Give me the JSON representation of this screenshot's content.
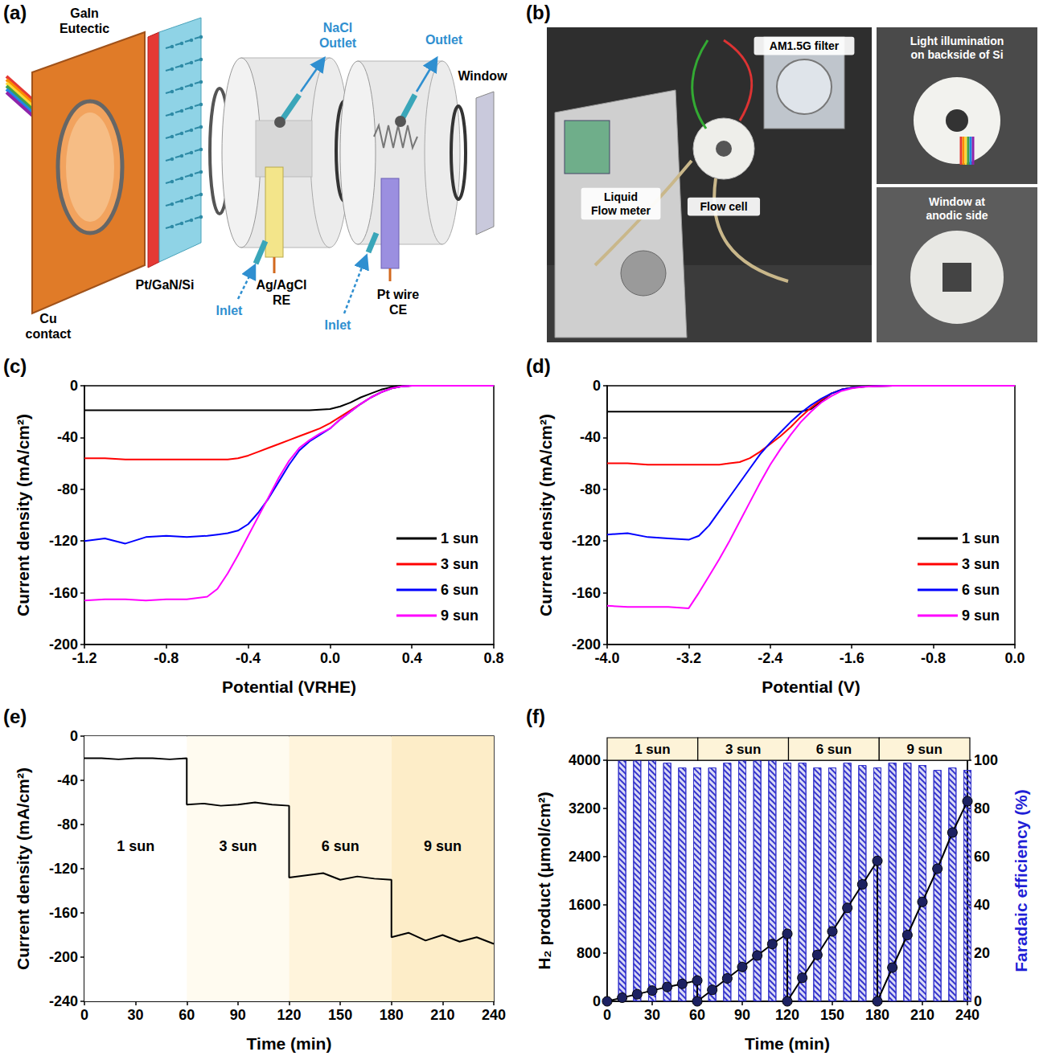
{
  "diagram": {
    "panel": "(a)",
    "labels": {
      "gain": "GaIn Eutectic",
      "cu": "Cu contact",
      "sample": "Pt/GaN/Si",
      "inlet1": "Inlet",
      "re": "Ag/AgCl RE",
      "nacl": "NaCl Outlet",
      "inlet2": "Inlet",
      "outlet": "Outlet",
      "ce": "Pt wire CE",
      "window": "Window"
    }
  },
  "photo": {
    "panel": "(b)",
    "labels": {
      "filter": "AM1.5G filter",
      "flowmeter": "Liquid Flow meter",
      "flowcell": "Flow cell",
      "backside": "Light illumination on backside of Si",
      "window": "Window at anodic side"
    }
  },
  "chart_data": [
    {
      "panel": "(c)",
      "type": "line",
      "x_label": "Potential (VRHE)",
      "y_label": "Current density (mA/cm²)",
      "x": [
        -1.2,
        -1.1,
        -1.0,
        -0.9,
        -0.8,
        -0.7,
        -0.6,
        -0.55,
        -0.5,
        -0.45,
        -0.4,
        -0.35,
        -0.3,
        -0.25,
        -0.2,
        -0.15,
        -0.1,
        -0.05,
        0.0,
        0.05,
        0.1,
        0.15,
        0.2,
        0.25,
        0.3,
        0.35,
        0.4,
        0.5,
        0.6,
        0.7,
        0.8
      ],
      "series": [
        {
          "name": "1 sun",
          "color": "#000000",
          "values": [
            -19,
            -19,
            -19,
            -19,
            -19,
            -19,
            -19,
            -19,
            -19,
            -19,
            -19,
            -19,
            -19,
            -19,
            -19,
            -19,
            -19,
            -18.5,
            -18,
            -16,
            -13,
            -9,
            -6,
            -3,
            -1,
            0,
            0,
            0,
            0,
            0,
            0
          ]
        },
        {
          "name": "3 sun",
          "color": "#ff0000",
          "values": [
            -56,
            -56,
            -57,
            -57,
            -57,
            -57,
            -57,
            -57,
            -57,
            -56,
            -54,
            -51,
            -48,
            -45,
            -42,
            -39,
            -36,
            -33,
            -29,
            -24,
            -19,
            -14,
            -9,
            -5,
            -2,
            -0.5,
            0,
            0,
            0,
            0,
            0
          ]
        },
        {
          "name": "6 sun",
          "color": "#0000ff",
          "values": [
            -120,
            -118,
            -122,
            -117,
            -116,
            -117,
            -116,
            -115,
            -114,
            -112,
            -107,
            -98,
            -87,
            -74,
            -61,
            -50,
            -43,
            -38,
            -33,
            -26,
            -20,
            -14,
            -9,
            -5,
            -2,
            -0.5,
            0,
            0,
            0,
            0,
            0
          ]
        },
        {
          "name": "9 sun",
          "color": "#ff00ff",
          "values": [
            -166,
            -165,
            -165,
            -166,
            -165,
            -165,
            -163,
            -157,
            -145,
            -131,
            -116,
            -101,
            -86,
            -71,
            -58,
            -48,
            -42,
            -37,
            -33,
            -26,
            -20,
            -14,
            -9,
            -5,
            -2,
            -0.5,
            0,
            0,
            0,
            0,
            0
          ]
        }
      ],
      "xlim": [
        -1.2,
        0.8
      ],
      "xticks": [
        -1.2,
        -0.8,
        -0.4,
        {
          "value": 0,
          "label": "0.0"
        },
        0.4,
        0.8
      ],
      "ylim": [
        -200,
        0
      ],
      "yticks": [
        -200,
        -160,
        -120,
        -80,
        -40,
        0
      ],
      "grid": false,
      "legend": "lower right"
    },
    {
      "panel": "(d)",
      "type": "line",
      "x_label": "Potential (V)",
      "y_label": "Current density (mA/cm²)",
      "x": [
        -4.0,
        -3.8,
        -3.6,
        -3.4,
        -3.2,
        -3.1,
        -3.0,
        -2.9,
        -2.8,
        -2.7,
        -2.6,
        -2.5,
        -2.4,
        -2.3,
        -2.2,
        -2.1,
        -2.0,
        -1.9,
        -1.8,
        -1.7,
        -1.6,
        -1.5,
        -1.4,
        -1.2,
        -0.8,
        -0.4,
        0.0
      ],
      "series": [
        {
          "name": "1 sun",
          "color": "#000000",
          "values": [
            -20,
            -20,
            -20,
            -20,
            -20,
            -20,
            -20,
            -20,
            -20,
            -20,
            -20,
            -20,
            -20,
            -20,
            -20,
            -20,
            -18,
            -12,
            -6,
            -3,
            -1.5,
            -0.8,
            -0.3,
            0,
            0,
            0,
            0
          ]
        },
        {
          "name": "3 sun",
          "color": "#ff0000",
          "values": [
            -60,
            -60,
            -61,
            -61,
            -61,
            -61,
            -61,
            -61,
            -60,
            -59,
            -56,
            -51,
            -45,
            -39,
            -32,
            -24,
            -17,
            -11,
            -6,
            -3,
            -1.5,
            -0.8,
            -0.3,
            0,
            0,
            0,
            0
          ]
        },
        {
          "name": "6 sun",
          "color": "#0000ff",
          "values": [
            -115,
            -114,
            -117,
            -118,
            -119,
            -116,
            -108,
            -97,
            -86,
            -75,
            -64,
            -53,
            -44,
            -36,
            -28,
            -21,
            -15,
            -10,
            -6,
            -3,
            -1.5,
            -0.8,
            -0.3,
            0,
            0,
            0,
            0
          ]
        },
        {
          "name": "9 sun",
          "color": "#ff00ff",
          "values": [
            -170,
            -171,
            -171,
            -171,
            -172,
            -160,
            -147,
            -134,
            -120,
            -105,
            -90,
            -75,
            -61,
            -49,
            -38,
            -28,
            -20,
            -13,
            -8,
            -4,
            -2,
            -1,
            -0.4,
            0,
            0,
            0,
            0
          ]
        }
      ],
      "xlim": [
        -4.0,
        0.0
      ],
      "xticks": [
        {
          "value": -4,
          "label": "-4.0"
        },
        -3.2,
        -2.4,
        -1.6,
        -0.8,
        {
          "value": 0,
          "label": "0.0"
        }
      ],
      "ylim": [
        -200,
        0
      ],
      "yticks": [
        -200,
        -160,
        -120,
        -80,
        -40,
        0
      ],
      "grid": false,
      "legend": "lower right"
    },
    {
      "panel": "(e)",
      "type": "line",
      "x_label": "Time (min)",
      "y_label": "Current density (mA/cm²)",
      "x": [
        0,
        10,
        20,
        30,
        40,
        50,
        60,
        60,
        70,
        80,
        90,
        100,
        110,
        120,
        120,
        130,
        140,
        150,
        160,
        170,
        180,
        180,
        190,
        200,
        210,
        220,
        230,
        240
      ],
      "series": [
        {
          "color": "#000000",
          "values": [
            -20,
            -20,
            -21,
            -20,
            -20,
            -21,
            -20,
            -62,
            -61,
            -63,
            -62,
            -60,
            -62,
            -63,
            -128,
            -126,
            -124,
            -130,
            -127,
            -129,
            -130,
            -182,
            -178,
            -185,
            -180,
            -186,
            -182,
            -188
          ]
        }
      ],
      "regions": [
        {
          "label": "1 sun",
          "from": 0,
          "to": 60
        },
        {
          "label": "3 sun",
          "from": 60,
          "to": 120
        },
        {
          "label": "6 sun",
          "from": 120,
          "to": 180
        },
        {
          "label": "9 sun",
          "from": 180,
          "to": 240
        }
      ],
      "xlim": [
        0,
        240
      ],
      "xticks": [
        0,
        30,
        60,
        90,
        120,
        150,
        180,
        210,
        240
      ],
      "ylim": [
        -240,
        0
      ],
      "yticks": [
        -240,
        -200,
        -160,
        -120,
        -80,
        -40,
        0
      ],
      "grid": false
    },
    {
      "panel": "(f)",
      "type": "combo",
      "x_label": "Time (min)",
      "y_label": "H₂ product (μmol/cm²)",
      "y2_label": "Faradaic efficiency (%)",
      "series": [
        {
          "type": "line",
          "color": "#1c2161",
          "marker": "circle",
          "x": [
            0,
            10,
            20,
            30,
            40,
            50,
            60,
            60,
            70,
            80,
            90,
            100,
            110,
            120,
            120,
            130,
            140,
            150,
            160,
            170,
            180,
            180,
            190,
            200,
            210,
            220,
            230,
            240
          ],
          "values": [
            0,
            60,
            118,
            178,
            238,
            290,
            345,
            0,
            190,
            380,
            570,
            760,
            950,
            1120,
            0,
            390,
            770,
            1160,
            1550,
            1940,
            2330,
            0,
            560,
            1100,
            1650,
            2200,
            2800,
            3320
          ]
        },
        {
          "type": "bar",
          "axis": "y2",
          "color": "#3333cc",
          "x": [
            10,
            20,
            30,
            40,
            50,
            60,
            70,
            80,
            90,
            100,
            110,
            120,
            130,
            140,
            150,
            160,
            170,
            180,
            190,
            200,
            210,
            220,
            230,
            240
          ],
          "values": [
            100,
            100,
            100,
            99,
            97,
            97,
            97,
            99,
            100,
            100,
            100,
            99,
            99,
            97,
            97,
            99,
            98,
            97,
            99,
            99,
            98,
            96,
            97,
            96
          ]
        }
      ],
      "regions": [
        {
          "label": "1 sun",
          "from": 0,
          "to": 60
        },
        {
          "label": "3 sun",
          "from": 60,
          "to": 120
        },
        {
          "label": "6 sun",
          "from": 120,
          "to": 180
        },
        {
          "label": "9 sun",
          "from": 180,
          "to": 240
        }
      ],
      "xlim": [
        0,
        240
      ],
      "xticks": [
        0,
        30,
        60,
        90,
        120,
        150,
        180,
        210,
        240
      ],
      "ylim": [
        0,
        4000
      ],
      "yticks": [
        0,
        800,
        1600,
        2400,
        3200,
        4000
      ],
      "y2lim": [
        0,
        100
      ],
      "y2ticks": [
        0,
        20,
        40,
        60,
        80,
        100
      ],
      "grid": false
    }
  ]
}
